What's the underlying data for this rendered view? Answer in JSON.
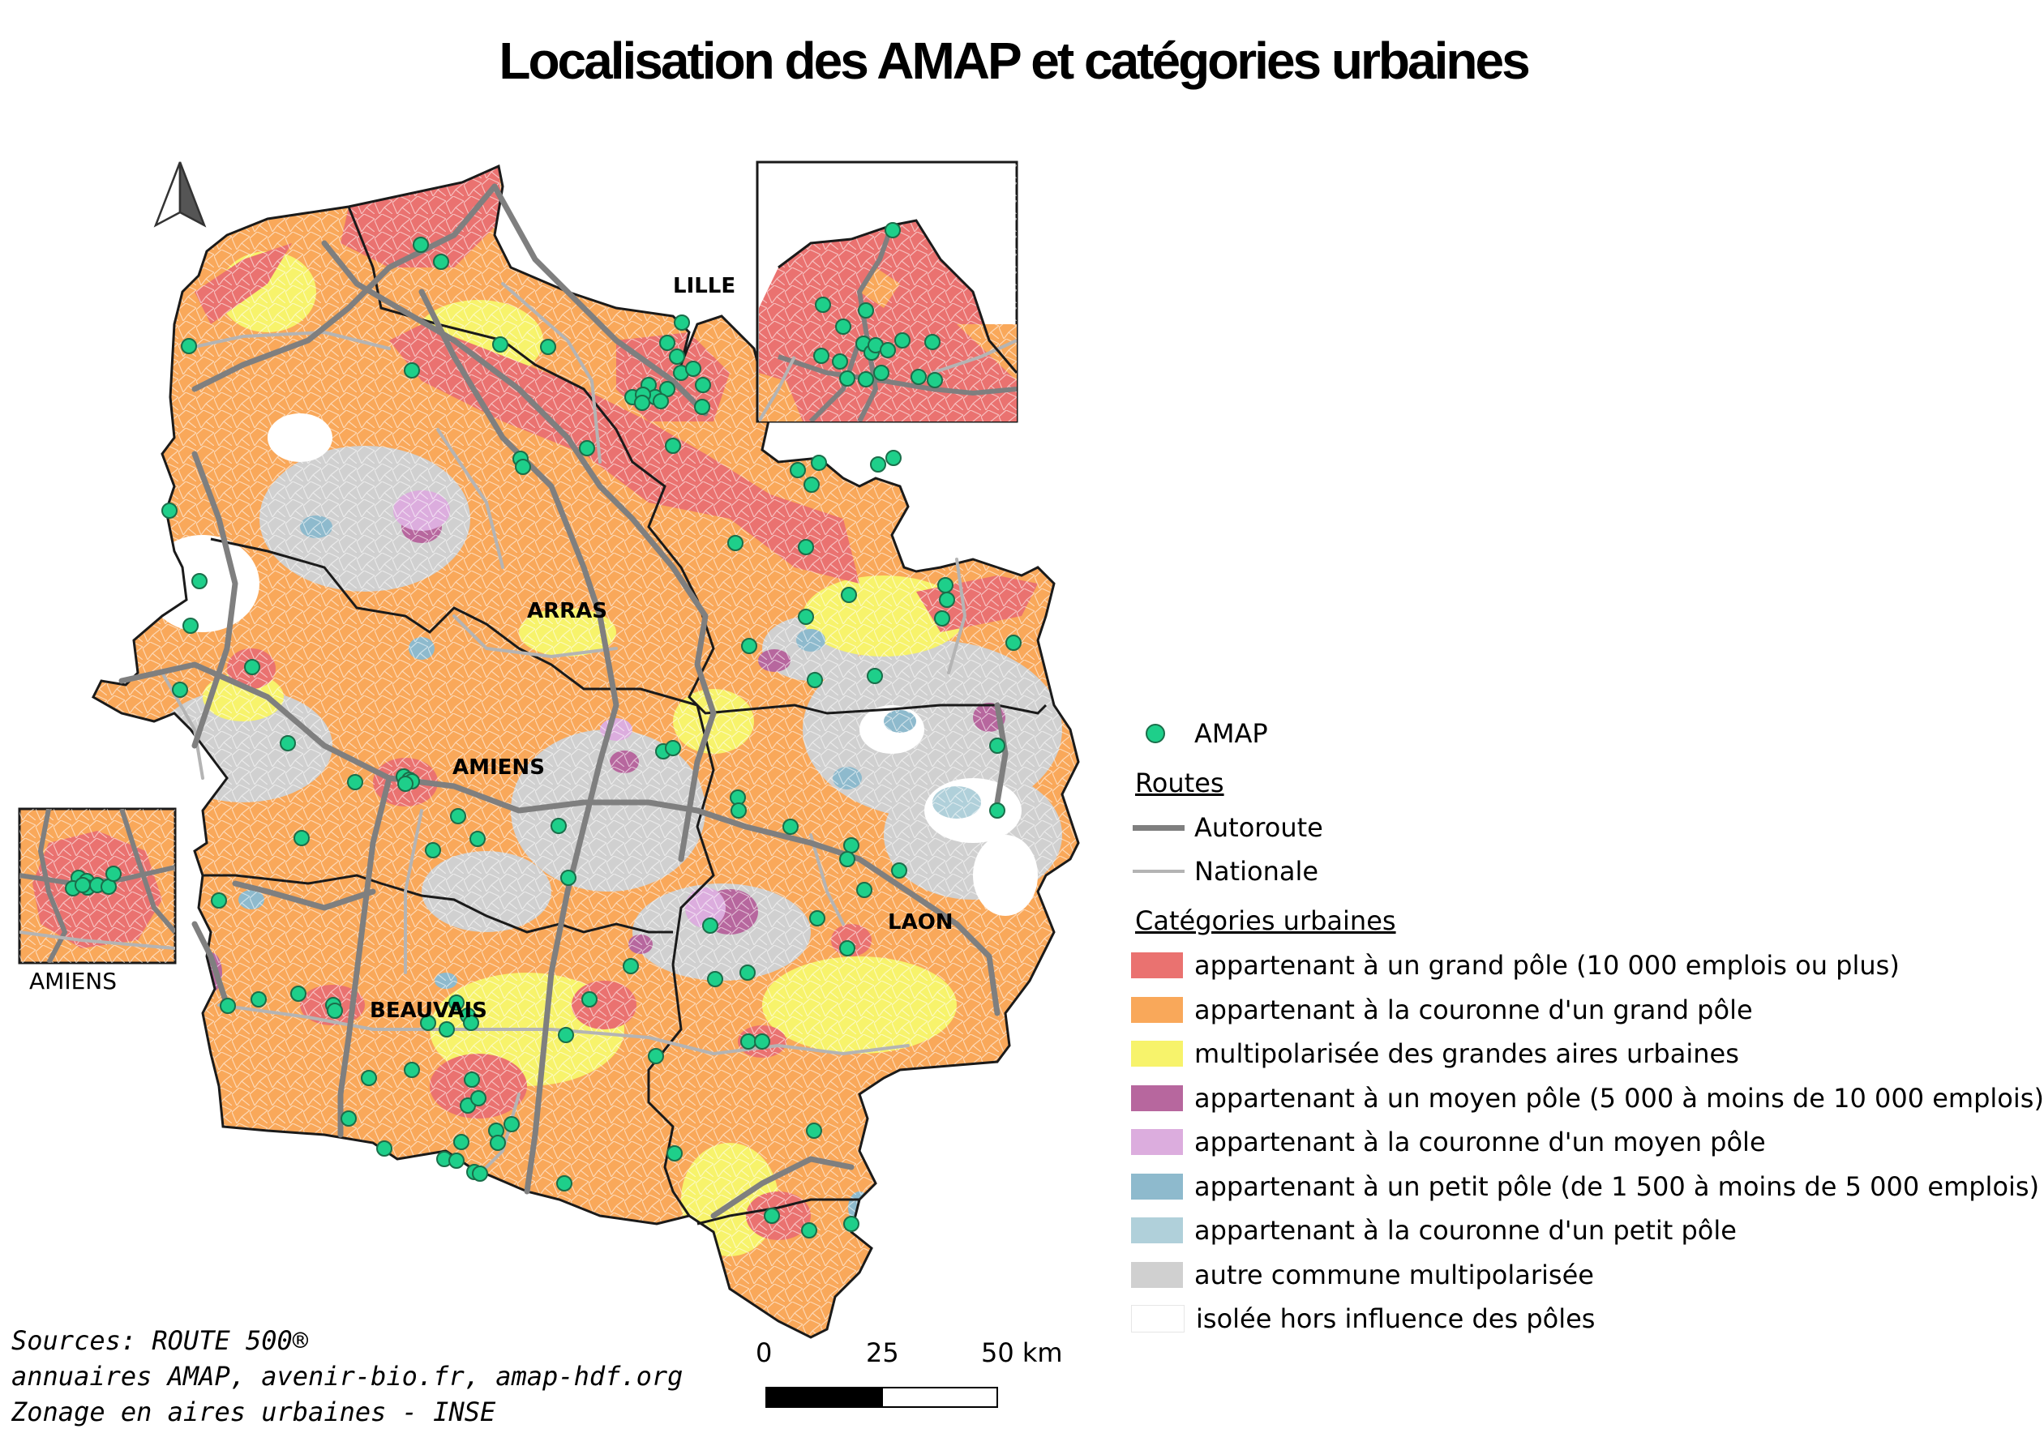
{
  "title": "Localisation des AMAP et catégories urbaines",
  "map": {
    "cities": {
      "lille": "LILLE",
      "arras": "ARRAS",
      "amiens": "AMIENS",
      "laon": "LAON",
      "beauvais": "BEAUVAIS"
    },
    "inset_amiens_label": "AMIENS",
    "north_arrow": "north-arrow-icon"
  },
  "legend": {
    "amap_label": "AMAP",
    "routes_heading": "Routes",
    "autoroute_label": "Autoroute",
    "nationale_label": "Nationale",
    "categories_heading": "Catégories urbaines",
    "categories": [
      {
        "label": "appartenant à un grand pôle (10 000 emplois ou plus)",
        "color": "#ea7270"
      },
      {
        "label": "appartenant à la couronne d'un grand pôle",
        "color": "#f9a85a"
      },
      {
        "label": "multipolarisée des grandes aires urbaines",
        "color": "#f7f36b"
      },
      {
        "label": "appartenant à un moyen pôle (5 000 à moins de 10 000 emplois)",
        "color": "#b7679e"
      },
      {
        "label": "appartenant à la couronne d'un moyen pôle",
        "color": "#dcadde"
      },
      {
        "label": "appartenant à un petit pôle (de 1 500 à moins de 5 000 emplois)",
        "color": "#8ebacd"
      },
      {
        "label": "appartenant à la couronne d'un petit pôle",
        "color": "#b0d0da"
      },
      {
        "label": "autre commune multipolarisée",
        "color": "#d0d0d0"
      },
      {
        "label": "isolée hors influence des pôles",
        "color": "#ffffff"
      }
    ],
    "amap_color": "#1ecf8a",
    "autoroute_color": "#7f7f7f",
    "nationale_color": "#b4b4b4"
  },
  "scale": {
    "labels": [
      "0",
      "25",
      "50 km"
    ]
  },
  "sources": [
    "Sources: ROUTE 500®",
    "annuaires AMAP, avenir-bio.fr, amap-hdf.org",
    "Zonage en aires urbaines  - INSE"
  ]
}
